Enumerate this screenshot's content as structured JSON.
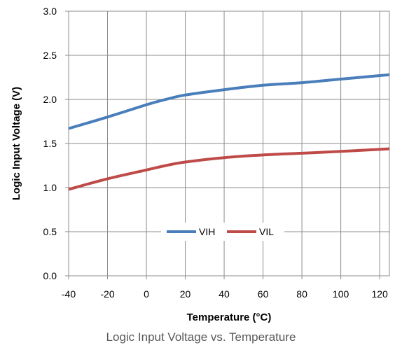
{
  "caption": "Logic Input Voltage vs. Temperature",
  "chart_data": {
    "type": "line",
    "title": "",
    "xlabel": "Temperature (°C)",
    "ylabel": "Logic Input Voltage (V)",
    "xlim": [
      -40,
      125
    ],
    "ylim": [
      0,
      3
    ],
    "x_ticks": [
      "-40",
      "-20",
      "0",
      "20",
      "40",
      "60",
      "80",
      "100",
      "120"
    ],
    "y_ticks": [
      "0.0",
      "0.5",
      "1.0",
      "1.5",
      "2.0",
      "2.5",
      "3.0"
    ],
    "grid": true,
    "legend_position": "bottom-center",
    "series": [
      {
        "name": "VIH",
        "color": "#4a7ebb",
        "x": [
          -40,
          -20,
          0,
          10,
          20,
          40,
          60,
          80,
          100,
          125
        ],
        "y": [
          1.67,
          1.8,
          1.94,
          2.0,
          2.05,
          2.11,
          2.16,
          2.19,
          2.23,
          2.28
        ]
      },
      {
        "name": "VIL",
        "color": "#be4b48",
        "x": [
          -40,
          -20,
          0,
          10,
          20,
          40,
          60,
          80,
          100,
          125
        ],
        "y": [
          0.98,
          1.1,
          1.2,
          1.25,
          1.29,
          1.34,
          1.37,
          1.39,
          1.41,
          1.44
        ]
      }
    ]
  }
}
